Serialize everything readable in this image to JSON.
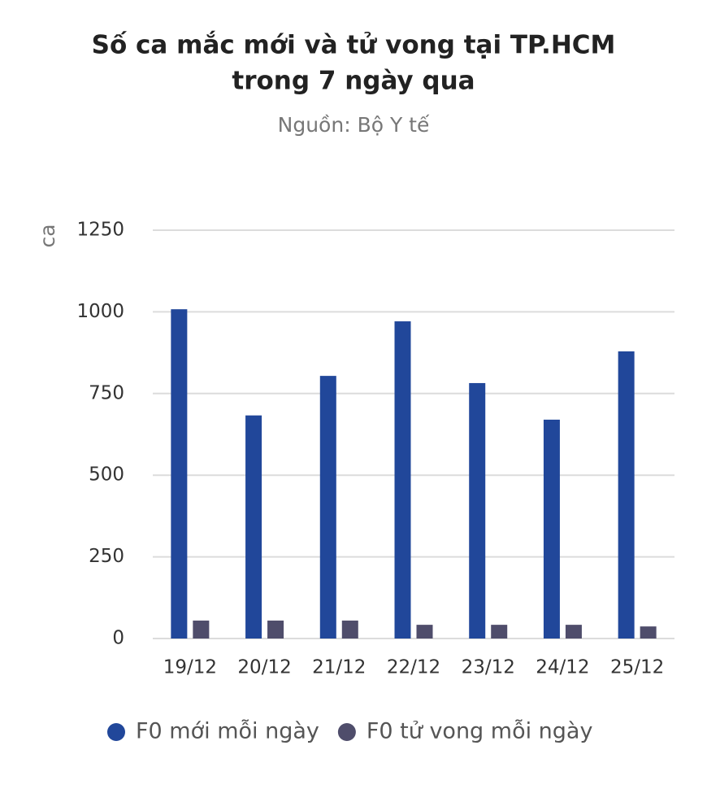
{
  "chart_data": {
    "type": "bar",
    "title": [
      "Số ca mắc mới và tử vong tại TP.HCM",
      "trong 7 ngày qua"
    ],
    "subtitle": "Nguồn: Bộ Y tế",
    "y_label": "ca",
    "categories": [
      "19/12",
      "20/12",
      "21/12",
      "22/12",
      "23/12",
      "24/12",
      "25/12"
    ],
    "series": [
      {
        "name": "F0 mới mỗi ngày",
        "color": "#21479a",
        "values": [
          1008,
          683,
          804,
          971,
          782,
          670,
          879
        ]
      },
      {
        "name": "F0 tử vong mỗi ngày",
        "color": "#4f4d6b",
        "values": [
          55,
          55,
          55,
          42,
          42,
          42,
          37
        ]
      }
    ],
    "ylim": [
      0,
      1250
    ],
    "yticks": [
      0,
      250,
      500,
      750,
      1000,
      1250
    ],
    "grid": true
  }
}
